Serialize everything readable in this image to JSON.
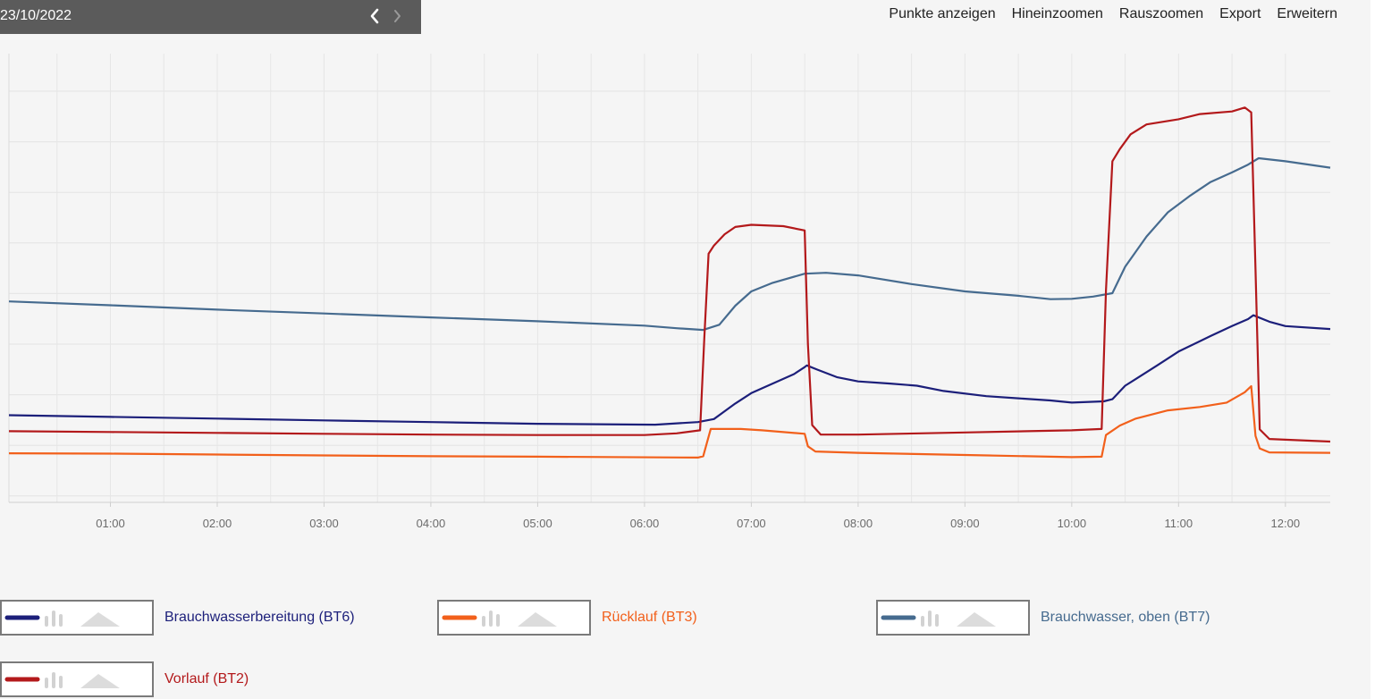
{
  "header": {
    "date": "23/10/2022"
  },
  "toolbar": {
    "show_points": "Punkte anzeigen",
    "zoom_in": "Hineinzoomen",
    "zoom_out": "Rauszoomen",
    "export": "Export",
    "expand": "Erweitern"
  },
  "chart_data": {
    "type": "line",
    "xlabel": "",
    "ylabel": "",
    "x_ticks": [
      "01:00",
      "02:00",
      "03:00",
      "04:00",
      "05:00",
      "06:00",
      "07:00",
      "08:00",
      "09:00",
      "10:00",
      "11:00",
      "12:00"
    ],
    "x_range_hours": [
      0.05,
      12.42
    ],
    "y_range": [
      0,
      100
    ],
    "grid": true,
    "series": [
      {
        "name": "Brauchwasserbereitung (BT6)",
        "color": "#1c1f7a",
        "points": [
          [
            0.05,
            18.5
          ],
          [
            1,
            18.1
          ],
          [
            2,
            17.7
          ],
          [
            3,
            17.3
          ],
          [
            4,
            16.9
          ],
          [
            5,
            16.5
          ],
          [
            6.1,
            16.3
          ],
          [
            6.5,
            16.9
          ],
          [
            6.65,
            17.6
          ],
          [
            6.75,
            19.4
          ],
          [
            6.85,
            21.2
          ],
          [
            7.0,
            23.6
          ],
          [
            7.2,
            25.8
          ],
          [
            7.4,
            28.0
          ],
          [
            7.5,
            29.6
          ],
          [
            7.52,
            30.0
          ],
          [
            7.62,
            29.0
          ],
          [
            7.8,
            27.3
          ],
          [
            8.0,
            26.3
          ],
          [
            8.3,
            25.8
          ],
          [
            8.55,
            25.3
          ],
          [
            8.8,
            24.1
          ],
          [
            9.2,
            22.9
          ],
          [
            9.5,
            22.4
          ],
          [
            9.8,
            21.9
          ],
          [
            10.0,
            21.4
          ],
          [
            10.3,
            21.7
          ],
          [
            10.38,
            22.2
          ],
          [
            10.5,
            25.3
          ],
          [
            10.8,
            30.0
          ],
          [
            11.0,
            33.2
          ],
          [
            11.3,
            36.8
          ],
          [
            11.5,
            39.1
          ],
          [
            11.65,
            40.7
          ],
          [
            11.7,
            41.6
          ],
          [
            11.85,
            40.1
          ],
          [
            12.0,
            39.1
          ],
          [
            12.42,
            38.4
          ]
        ]
      },
      {
        "name": "Rücklauf (BT3)",
        "color": "#f2601b",
        "points": [
          [
            0.05,
            9.7
          ],
          [
            1,
            9.6
          ],
          [
            2,
            9.4
          ],
          [
            3,
            9.2
          ],
          [
            4,
            9.0
          ],
          [
            5,
            8.9
          ],
          [
            6.5,
            8.7
          ],
          [
            6.55,
            9.0
          ],
          [
            6.62,
            15.3
          ],
          [
            6.9,
            15.3
          ],
          [
            7.1,
            15.0
          ],
          [
            7.5,
            14.2
          ],
          [
            7.53,
            11.3
          ],
          [
            7.6,
            10.1
          ],
          [
            8,
            9.8
          ],
          [
            9,
            9.3
          ],
          [
            10,
            8.8
          ],
          [
            10.28,
            8.9
          ],
          [
            10.32,
            13.9
          ],
          [
            10.45,
            16.1
          ],
          [
            10.6,
            17.7
          ],
          [
            10.9,
            19.6
          ],
          [
            11.2,
            20.4
          ],
          [
            11.45,
            21.4
          ],
          [
            11.62,
            23.8
          ],
          [
            11.68,
            25.2
          ],
          [
            11.72,
            13.7
          ],
          [
            11.76,
            10.8
          ],
          [
            11.85,
            9.9
          ],
          [
            12.42,
            9.8
          ]
        ]
      },
      {
        "name": "Brauchwasser, oben (BT7)",
        "color": "#466b8f",
        "points": [
          [
            0.05,
            44.8
          ],
          [
            1,
            43.9
          ],
          [
            2,
            42.9
          ],
          [
            3,
            42.0
          ],
          [
            4,
            41.1
          ],
          [
            5,
            40.2
          ],
          [
            6.0,
            39.2
          ],
          [
            6.3,
            38.6
          ],
          [
            6.55,
            38.2
          ],
          [
            6.7,
            39.4
          ],
          [
            6.85,
            43.8
          ],
          [
            7.0,
            47.1
          ],
          [
            7.2,
            49.1
          ],
          [
            7.5,
            51.2
          ],
          [
            7.7,
            51.4
          ],
          [
            8.0,
            50.8
          ],
          [
            8.5,
            48.8
          ],
          [
            9.0,
            47.1
          ],
          [
            9.5,
            46.1
          ],
          [
            9.8,
            45.3
          ],
          [
            10.0,
            45.4
          ],
          [
            10.2,
            45.9
          ],
          [
            10.38,
            46.7
          ],
          [
            10.5,
            52.8
          ],
          [
            10.7,
            59.8
          ],
          [
            10.9,
            65.4
          ],
          [
            11.1,
            69.1
          ],
          [
            11.3,
            72.4
          ],
          [
            11.5,
            74.6
          ],
          [
            11.65,
            76.4
          ],
          [
            11.75,
            77.9
          ],
          [
            12.0,
            77.2
          ],
          [
            12.42,
            75.7
          ]
        ]
      },
      {
        "name": "Vorlauf (BT2)",
        "color": "#b3191b",
        "points": [
          [
            0.05,
            14.8
          ],
          [
            1,
            14.6
          ],
          [
            2,
            14.4
          ],
          [
            3,
            14.2
          ],
          [
            4,
            14.0
          ],
          [
            5,
            13.9
          ],
          [
            6.0,
            13.9
          ],
          [
            6.3,
            14.3
          ],
          [
            6.52,
            15.0
          ],
          [
            6.56,
            36.2
          ],
          [
            6.6,
            55.8
          ],
          [
            6.65,
            57.7
          ],
          [
            6.75,
            60.3
          ],
          [
            6.85,
            62.0
          ],
          [
            7.0,
            62.5
          ],
          [
            7.3,
            62.2
          ],
          [
            7.5,
            61.2
          ],
          [
            7.53,
            35.0
          ],
          [
            7.57,
            16.2
          ],
          [
            7.65,
            14.0
          ],
          [
            8,
            14.0
          ],
          [
            9,
            14.5
          ],
          [
            10,
            15.0
          ],
          [
            10.28,
            15.3
          ],
          [
            10.32,
            47.3
          ],
          [
            10.38,
            77.2
          ],
          [
            10.45,
            80.0
          ],
          [
            10.55,
            83.4
          ],
          [
            10.7,
            85.7
          ],
          [
            11.0,
            86.9
          ],
          [
            11.2,
            88.1
          ],
          [
            11.5,
            88.7
          ],
          [
            11.62,
            89.6
          ],
          [
            11.68,
            88.5
          ],
          [
            11.72,
            52.1
          ],
          [
            11.76,
            15.2
          ],
          [
            11.85,
            13.0
          ],
          [
            12.42,
            12.4
          ]
        ]
      }
    ]
  },
  "legend": [
    {
      "label": "Brauchwasserbereitung (BT6)",
      "color": "#1c1f7a"
    },
    {
      "label": "Rücklauf (BT3)",
      "color": "#f2601b"
    },
    {
      "label": "Brauchwasser, oben (BT7)",
      "color": "#466b8f"
    },
    {
      "label": "Vorlauf (BT2)",
      "color": "#b3191b"
    }
  ]
}
